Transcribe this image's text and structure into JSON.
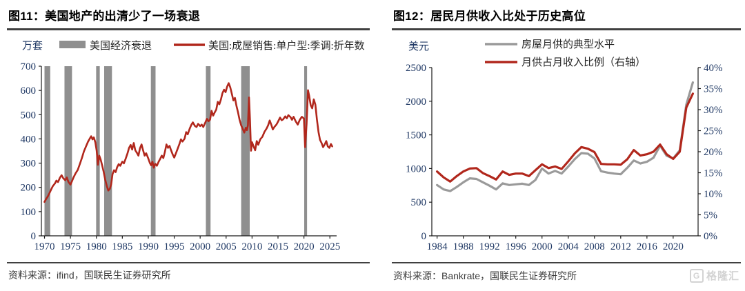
{
  "figures": [
    {
      "title": "图11：美国地产的出清少了一场衰退",
      "unit_label": "万套",
      "source": "资料来源：ifind，国联民生证券研究所"
    },
    {
      "title": "图12：居民月供收入比处于历史高位",
      "unit_label": "美元",
      "source": "资料来源：Bankrate，国联民生证券研究所"
    }
  ],
  "watermark": {
    "icon_letter": "G",
    "text": "格隆汇"
  },
  "colors": {
    "series_red": "#b1271c",
    "series_gray": "#9a9a9a",
    "recession_gray": "#8f8f8f",
    "axis_label_navy": "#1f3864",
    "axis_line": "#1a1a1a"
  },
  "chart_data": [
    {
      "type": "line",
      "title": "图11：美国地产的出清少了一场衰退",
      "ylabel": "万套",
      "xlim": [
        1969.4,
        2026.3
      ],
      "ylim": [
        0,
        700
      ],
      "x_ticks": [
        1970,
        1975,
        1980,
        1985,
        1990,
        1995,
        2000,
        2005,
        2010,
        2015,
        2020,
        2025
      ],
      "y_ticks": [
        0,
        100,
        200,
        300,
        400,
        500,
        600,
        700
      ],
      "grid": false,
      "legend_position": "top",
      "bands_label": "美国经济衰退",
      "recession_bands": [
        [
          1970.0,
          1971.1
        ],
        [
          1973.85,
          1975.3
        ],
        [
          1979.95,
          1980.65
        ],
        [
          1981.5,
          1983.0
        ],
        [
          1990.5,
          1991.4
        ],
        [
          2001.1,
          2002.0
        ],
        [
          2007.9,
          2009.55
        ],
        [
          2020.05,
          2020.6
        ]
      ],
      "series": [
        {
          "name": "美国:成屋销售:单户型:季调:折年数",
          "color": "#b1271c",
          "points": [
            [
              1970,
              140
            ],
            [
              1970.3,
              152
            ],
            [
              1970.6,
              161
            ],
            [
              1971,
              178
            ],
            [
              1971.3,
              192
            ],
            [
              1971.6,
              205
            ],
            [
              1972,
              216
            ],
            [
              1972.3,
              228
            ],
            [
              1972.6,
              222
            ],
            [
              1973,
              241
            ],
            [
              1973.3,
              250
            ],
            [
              1973.6,
              238
            ],
            [
              1974,
              229
            ],
            [
              1974.3,
              241
            ],
            [
              1974.6,
              223
            ],
            [
              1975,
              211
            ],
            [
              1975.3,
              226
            ],
            [
              1975.6,
              241
            ],
            [
              1976,
              258
            ],
            [
              1976.4,
              272
            ],
            [
              1976.8,
              296
            ],
            [
              1977.2,
              321
            ],
            [
              1977.6,
              349
            ],
            [
              1978,
              369
            ],
            [
              1978.4,
              389
            ],
            [
              1978.8,
              404
            ],
            [
              1979,
              411
            ],
            [
              1979.25,
              398
            ],
            [
              1979.5,
              406
            ],
            [
              1979.8,
              386
            ],
            [
              1980.05,
              352
            ],
            [
              1980.3,
              293
            ],
            [
              1980.55,
              331
            ],
            [
              1980.8,
              316
            ],
            [
              1981.1,
              292
            ],
            [
              1981.4,
              264
            ],
            [
              1981.7,
              232
            ],
            [
              1982,
              206
            ],
            [
              1982.3,
              187
            ],
            [
              1982.6,
              194
            ],
            [
              1982.85,
              213
            ],
            [
              1983.1,
              254
            ],
            [
              1983.4,
              271
            ],
            [
              1983.7,
              263
            ],
            [
              1984,
              283
            ],
            [
              1984.3,
              296
            ],
            [
              1984.6,
              289
            ],
            [
              1985,
              306
            ],
            [
              1985.3,
              299
            ],
            [
              1985.6,
              316
            ],
            [
              1986,
              341
            ],
            [
              1986.3,
              363
            ],
            [
              1986.6,
              375
            ],
            [
              1986.9,
              356
            ],
            [
              1987.2,
              383
            ],
            [
              1987.5,
              353
            ],
            [
              1987.8,
              343
            ],
            [
              1988.1,
              331
            ],
            [
              1988.4,
              361
            ],
            [
              1988.7,
              377
            ],
            [
              1989,
              353
            ],
            [
              1989.3,
              331
            ],
            [
              1989.6,
              341
            ],
            [
              1990,
              319
            ],
            [
              1990.3,
              301
            ],
            [
              1990.55,
              291
            ],
            [
              1990.8,
              306
            ],
            [
              1991.05,
              281
            ],
            [
              1991.35,
              297
            ],
            [
              1991.65,
              289
            ],
            [
              1992,
              306
            ],
            [
              1992.3,
              318
            ],
            [
              1992.6,
              331
            ],
            [
              1992.9,
              321
            ],
            [
              1993.2,
              346
            ],
            [
              1993.5,
              377
            ],
            [
              1993.8,
              363
            ],
            [
              1994.1,
              371
            ],
            [
              1994.4,
              353
            ],
            [
              1994.7,
              336
            ],
            [
              1995,
              323
            ],
            [
              1995.3,
              339
            ],
            [
              1995.6,
              356
            ],
            [
              1996,
              379
            ],
            [
              1996.3,
              398
            ],
            [
              1996.6,
              389
            ],
            [
              1997,
              401
            ],
            [
              1997.3,
              428
            ],
            [
              1997.6,
              419
            ],
            [
              1998,
              443
            ],
            [
              1998.3,
              458
            ],
            [
              1998.6,
              468
            ],
            [
              1999,
              453
            ],
            [
              1999.3,
              449
            ],
            [
              1999.6,
              462
            ],
            [
              2000,
              453
            ],
            [
              2000.3,
              459
            ],
            [
              2000.6,
              449
            ],
            [
              2001,
              468
            ],
            [
              2001.3,
              483
            ],
            [
              2001.6,
              473
            ],
            [
              2001.9,
              479
            ],
            [
              2002.2,
              516
            ],
            [
              2002.5,
              496
            ],
            [
              2002.8,
              509
            ],
            [
              2003.1,
              521
            ],
            [
              2003.4,
              553
            ],
            [
              2003.7,
              543
            ],
            [
              2004,
              563
            ],
            [
              2004.3,
              589
            ],
            [
              2004.6,
              603
            ],
            [
              2004.9,
              593
            ],
            [
              2005.2,
              616
            ],
            [
              2005.5,
              630
            ],
            [
              2005.8,
              613
            ],
            [
              2006.1,
              586
            ],
            [
              2006.4,
              559
            ],
            [
              2006.7,
              569
            ],
            [
              2007,
              536
            ],
            [
              2007.3,
              509
            ],
            [
              2007.6,
              479
            ],
            [
              2007.9,
              456
            ],
            [
              2008.2,
              441
            ],
            [
              2008.5,
              426
            ],
            [
              2008.8,
              446
            ],
            [
              2009,
              436
            ],
            [
              2009.2,
              456
            ],
            [
              2009.42,
              571
            ],
            [
              2009.6,
              479
            ],
            [
              2009.8,
              351
            ],
            [
              2010,
              386
            ],
            [
              2010.3,
              369
            ],
            [
              2010.6,
              353
            ],
            [
              2010.9,
              391
            ],
            [
              2011.2,
              376
            ],
            [
              2011.6,
              399
            ],
            [
              2012,
              409
            ],
            [
              2012.4,
              429
            ],
            [
              2012.8,
              443
            ],
            [
              2013.1,
              456
            ],
            [
              2013.4,
              476
            ],
            [
              2013.7,
              459
            ],
            [
              2014,
              439
            ],
            [
              2014.3,
              449
            ],
            [
              2014.7,
              459
            ],
            [
              2015,
              471
            ],
            [
              2015.4,
              488
            ],
            [
              2015.7,
              477
            ],
            [
              2016,
              481
            ],
            [
              2016.4,
              493
            ],
            [
              2016.7,
              485
            ],
            [
              2017,
              498
            ],
            [
              2017.4,
              490
            ],
            [
              2017.7,
              479
            ],
            [
              2018,
              491
            ],
            [
              2018.4,
              473
            ],
            [
              2018.8,
              459
            ],
            [
              2019.2,
              479
            ],
            [
              2019.6,
              491
            ],
            [
              2020,
              484
            ],
            [
              2020.22,
              366
            ],
            [
              2020.5,
              459
            ],
            [
              2020.78,
              601
            ],
            [
              2021,
              579
            ],
            [
              2021.3,
              539
            ],
            [
              2021.6,
              526
            ],
            [
              2021.9,
              563
            ],
            [
              2022.2,
              541
            ],
            [
              2022.5,
              481
            ],
            [
              2022.8,
              429
            ],
            [
              2023.1,
              396
            ],
            [
              2023.4,
              383
            ],
            [
              2023.7,
              366
            ],
            [
              2024,
              377
            ],
            [
              2024.3,
              391
            ],
            [
              2024.6,
              369
            ],
            [
              2024.9,
              363
            ],
            [
              2025.2,
              379
            ],
            [
              2025.45,
              369
            ]
          ]
        }
      ]
    },
    {
      "type": "line",
      "title": "图12：居民月供收入比处于历史高位",
      "ylabel_left": "美元",
      "xlim": [
        1983.2,
        2023.8
      ],
      "x_ticks": [
        1984,
        1988,
        1992,
        1996,
        2000,
        2004,
        2008,
        2012,
        2016,
        2020
      ],
      "left_ylim": [
        0,
        2500
      ],
      "left_ticks": [
        0,
        500,
        1000,
        1500,
        2000,
        2500
      ],
      "right_ylim": [
        0,
        40
      ],
      "right_ticks": [
        "0%",
        "5%",
        "10%",
        "15%",
        "20%",
        "25%",
        "30%",
        "35%",
        "40%"
      ],
      "grid": false,
      "legend_position": "top",
      "x": [
        1984,
        1985,
        1986,
        1987,
        1988,
        1989,
        1990,
        1991,
        1992,
        1993,
        1994,
        1995,
        1996,
        1997,
        1998,
        1999,
        2000,
        2001,
        2002,
        2003,
        2004,
        2005,
        2006,
        2007,
        2008,
        2009,
        2010,
        2011,
        2012,
        2013,
        2014,
        2015,
        2016,
        2017,
        2018,
        2019,
        2020,
        2021,
        2022,
        2023
      ],
      "series": [
        {
          "name": "房屋月供的典型水平",
          "axis": "left",
          "color": "#9a9a9a",
          "values": [
            755,
            690,
            665,
            725,
            795,
            855,
            845,
            795,
            745,
            690,
            780,
            755,
            765,
            775,
            755,
            830,
            1000,
            925,
            965,
            925,
            1030,
            1140,
            1230,
            1220,
            1150,
            960,
            940,
            925,
            915,
            1010,
            1120,
            1075,
            1100,
            1160,
            1340,
            1190,
            1150,
            1270,
            1950,
            2280
          ]
        },
        {
          "name": "月供占月收入比例（右轴）",
          "axis": "right",
          "color": "#b1271c",
          "values": [
            15.3,
            13.9,
            12.9,
            14.2,
            15.3,
            16,
            16.1,
            14.9,
            14.2,
            13.4,
            15.3,
            14.5,
            14.8,
            14.8,
            14.2,
            15.6,
            17,
            16.1,
            16.5,
            15.9,
            17.7,
            19.6,
            21.1,
            20.7,
            19.9,
            17.1,
            17,
            17,
            16.9,
            18.2,
            20.4,
            19.1,
            19.4,
            20,
            21.7,
            19.4,
            18.3,
            20,
            30.5,
            33.8
          ]
        }
      ]
    }
  ]
}
